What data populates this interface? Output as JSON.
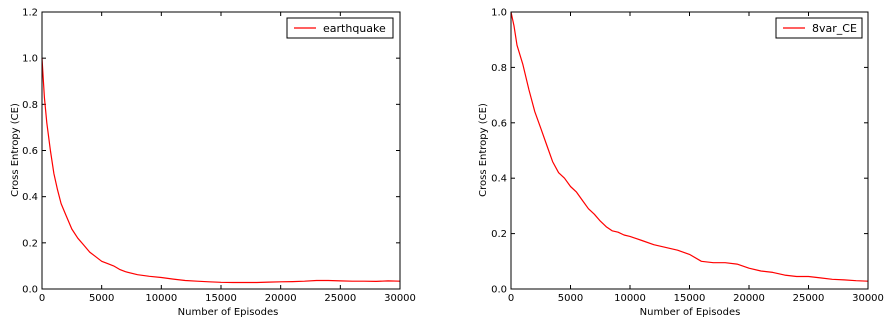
{
  "figure": {
    "background": "#ffffff"
  },
  "chart_data": [
    {
      "type": "line",
      "xlabel": "Number of Episodes",
      "ylabel": "Cross Entropy (CE)",
      "xlim": [
        0,
        30000
      ],
      "ylim": [
        0,
        1.2
      ],
      "xticks": [
        0,
        5000,
        10000,
        15000,
        20000,
        25000,
        30000
      ],
      "xtick_labels": [
        "0",
        "5000",
        "10000",
        "15000",
        "20000",
        "25000",
        "30000"
      ],
      "yticks": [
        0.0,
        0.2,
        0.4,
        0.6,
        0.8,
        1.0,
        1.2
      ],
      "ytick_labels": [
        "0.0",
        "0.2",
        "0.4",
        "0.6",
        "0.8",
        "1.0",
        "1.2"
      ],
      "grid": false,
      "legend_position": "top-right",
      "series": [
        {
          "name": "earthquake",
          "color": "#ff0000",
          "x": [
            0,
            200,
            400,
            700,
            1000,
            1300,
            1600,
            2000,
            2500,
            3000,
            3500,
            4000,
            4500,
            5000,
            5500,
            6000,
            6500,
            7000,
            8000,
            9000,
            10000,
            11000,
            12000,
            13000,
            14000,
            15000,
            16000,
            17000,
            18000,
            19000,
            20000,
            21000,
            22000,
            23000,
            24000,
            25000,
            26000,
            27000,
            28000,
            29000,
            30000
          ],
          "y": [
            1.0,
            0.83,
            0.72,
            0.6,
            0.5,
            0.43,
            0.37,
            0.32,
            0.26,
            0.22,
            0.19,
            0.16,
            0.14,
            0.12,
            0.11,
            0.1,
            0.085,
            0.075,
            0.062,
            0.055,
            0.05,
            0.043,
            0.037,
            0.034,
            0.031,
            0.029,
            0.028,
            0.028,
            0.028,
            0.03,
            0.031,
            0.032,
            0.034,
            0.037,
            0.037,
            0.035,
            0.034,
            0.034,
            0.033,
            0.035,
            0.034
          ]
        }
      ]
    },
    {
      "type": "line",
      "xlabel": "Number of Episodes",
      "ylabel": "Cross Entropy (CE)",
      "xlim": [
        0,
        30000
      ],
      "ylim": [
        0,
        1.0
      ],
      "xticks": [
        0,
        5000,
        10000,
        15000,
        20000,
        25000,
        30000
      ],
      "xtick_labels": [
        "0",
        "5000",
        "10000",
        "15000",
        "20000",
        "25000",
        "30000"
      ],
      "yticks": [
        0.0,
        0.2,
        0.4,
        0.6,
        0.8,
        1.0
      ],
      "ytick_labels": [
        "0.0",
        "0.2",
        "0.4",
        "0.6",
        "0.8",
        "1.0"
      ],
      "grid": false,
      "legend_position": "top-right",
      "series": [
        {
          "name": "8var_CE",
          "color": "#ff0000",
          "x": [
            0,
            250,
            500,
            1000,
            1500,
            2000,
            2500,
            3000,
            3500,
            4000,
            4500,
            5000,
            5500,
            6000,
            6500,
            7000,
            7500,
            8000,
            8500,
            9000,
            9500,
            10000,
            11000,
            12000,
            13000,
            14000,
            15000,
            16000,
            17000,
            18000,
            19000,
            20000,
            21000,
            22000,
            23000,
            24000,
            25000,
            26000,
            27000,
            28000,
            29000,
            30000
          ],
          "y": [
            1.0,
            0.95,
            0.88,
            0.81,
            0.72,
            0.64,
            0.58,
            0.52,
            0.46,
            0.42,
            0.4,
            0.37,
            0.35,
            0.32,
            0.29,
            0.27,
            0.245,
            0.225,
            0.21,
            0.205,
            0.195,
            0.19,
            0.175,
            0.16,
            0.15,
            0.14,
            0.125,
            0.1,
            0.095,
            0.095,
            0.09,
            0.075,
            0.065,
            0.06,
            0.05,
            0.045,
            0.045,
            0.04,
            0.035,
            0.033,
            0.03,
            0.028
          ]
        }
      ]
    }
  ]
}
